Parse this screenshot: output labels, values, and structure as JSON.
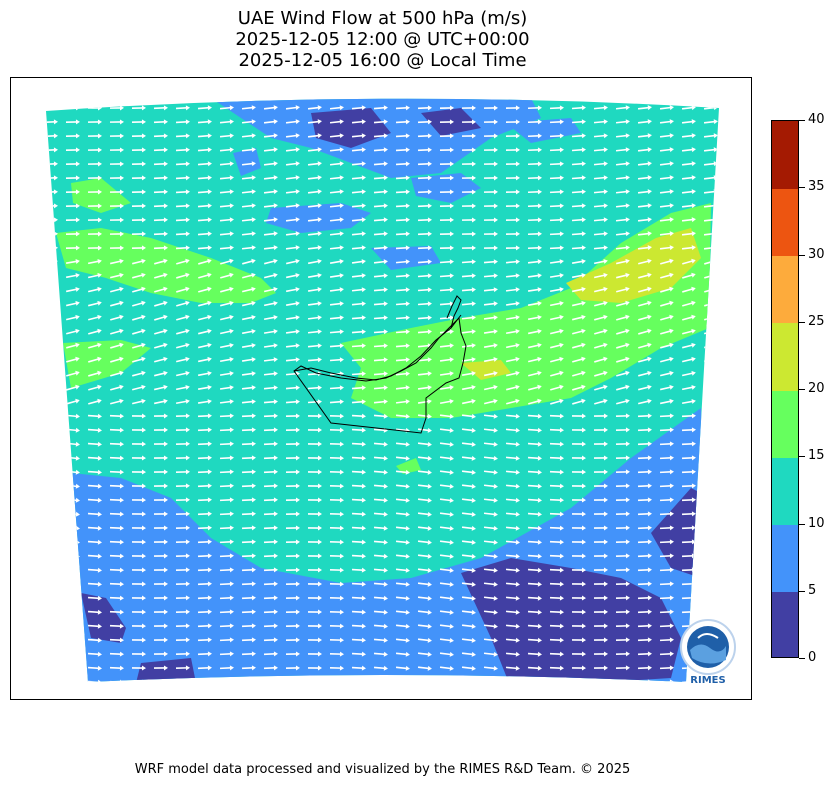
{
  "title": {
    "line1": "UAE Wind Flow at 500 hPa (m/s)",
    "line2": "2025-12-05 12:00 @ UTC+00:00",
    "line3": "2025-12-05 16:00 @ Local Time"
  },
  "colorbar": {
    "ticks": [
      "0",
      "5",
      "10",
      "15",
      "20",
      "25",
      "30",
      "35",
      "40"
    ],
    "levels": [
      {
        "from": 0,
        "to": 5,
        "color": "#413fa3"
      },
      {
        "from": 5,
        "to": 10,
        "color": "#4393fa"
      },
      {
        "from": 10,
        "to": 15,
        "color": "#1fd9c0"
      },
      {
        "from": 15,
        "to": 20,
        "color": "#66ff5e"
      },
      {
        "from": 20,
        "to": 25,
        "color": "#cce831"
      },
      {
        "from": 25,
        "to": 30,
        "color": "#fdab3c"
      },
      {
        "from": 30,
        "to": 35,
        "color": "#ed5511"
      },
      {
        "from": 35,
        "to": 40,
        "color": "#a41a02"
      }
    ]
  },
  "map": {
    "variable": "wind speed",
    "units": "m/s",
    "dominant_flow": "westerly",
    "vector_color": "#ffffff",
    "boundary_color": "#000000"
  },
  "logo": {
    "text": "RIMES",
    "icon": "rimes-globe-logo"
  },
  "footer": {
    "credit": "WRF model data processed and visualized by the RIMES R&D Team. © 2025"
  }
}
